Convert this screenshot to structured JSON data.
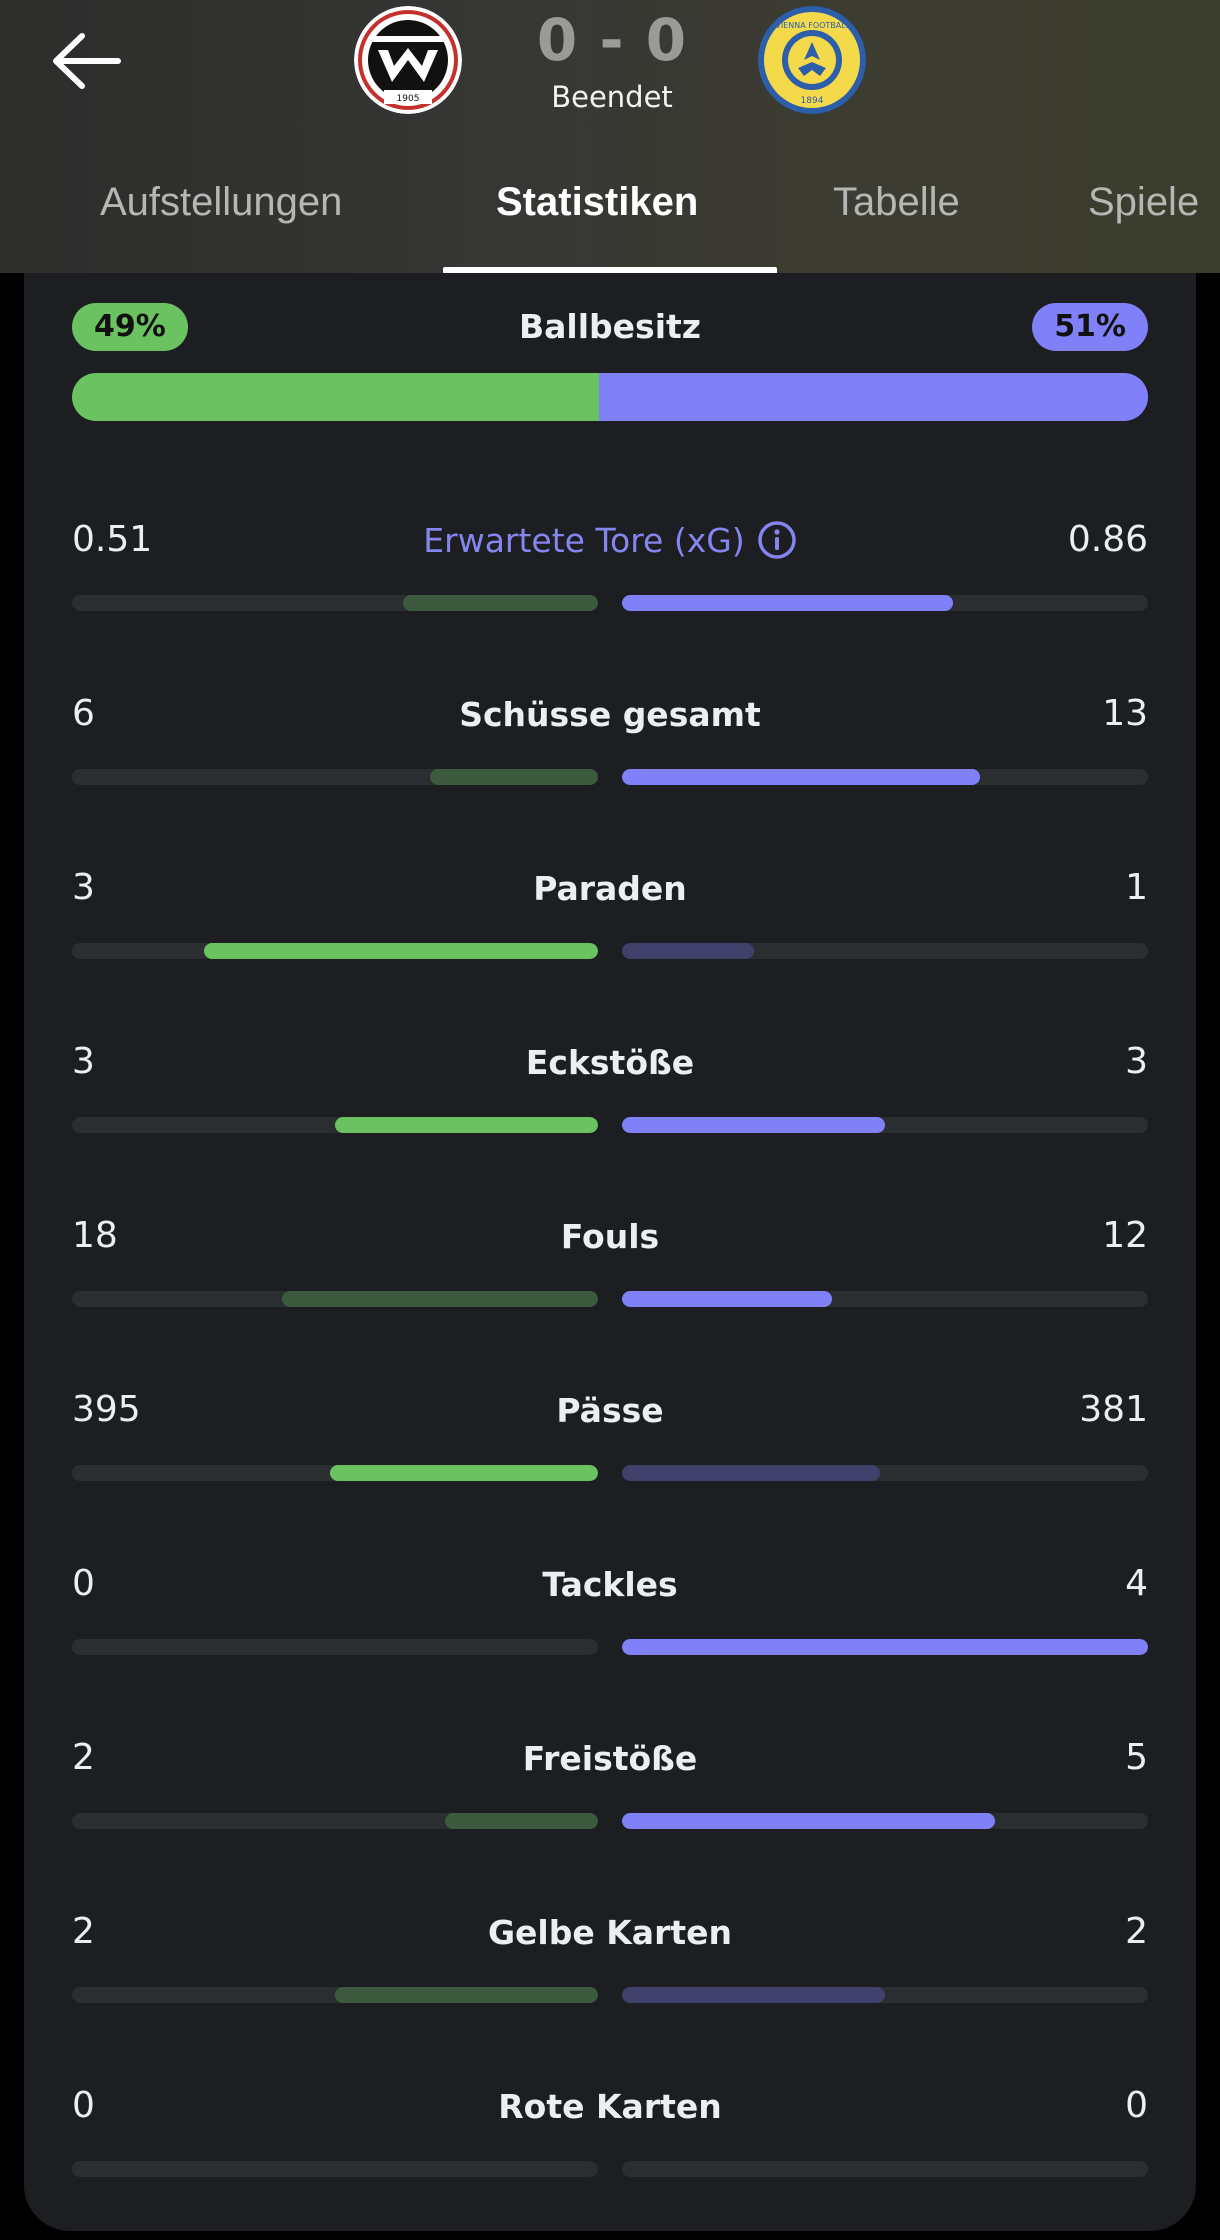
{
  "header": {
    "score": "0 - 0",
    "status": "Beendet",
    "home_logo_year": "1905",
    "away_logo_text": "FIRST VIENNA FOOTBALL CLUB",
    "away_logo_year": "1894"
  },
  "tabs": [
    {
      "label": "Aufstellungen",
      "active": false
    },
    {
      "label": "Statistiken",
      "active": true
    },
    {
      "label": "Tabelle",
      "active": false
    },
    {
      "label": "Spiele",
      "active": false
    }
  ],
  "icons": {
    "back": "arrow-left-icon",
    "info": "info-icon"
  },
  "colors": {
    "home": "#6bc261",
    "home_dim": "#3c5a3e",
    "away": "#8080f8",
    "away_dim": "#3f416b"
  },
  "possession": {
    "label": "Ballbesitz",
    "home": "49%",
    "away": "51%",
    "home_fraction": 0.49,
    "away_fraction": 0.51
  },
  "stats": [
    {
      "label": "Erwartete Tore (xG)",
      "home": "0.51",
      "away": "0.86",
      "home_fill": 0.37,
      "away_fill": 0.63,
      "home_bright": false,
      "away_bright": true,
      "accent": true
    },
    {
      "label": "Schüsse gesamt",
      "home": "6",
      "away": "13",
      "home_fill": 0.32,
      "away_fill": 0.68,
      "home_bright": false,
      "away_bright": true,
      "accent": false
    },
    {
      "label": "Paraden",
      "home": "3",
      "away": "1",
      "home_fill": 0.75,
      "away_fill": 0.25,
      "home_bright": true,
      "away_bright": false,
      "accent": false
    },
    {
      "label": "Eckstöße",
      "home": "3",
      "away": "3",
      "home_fill": 0.5,
      "away_fill": 0.5,
      "home_bright": true,
      "away_bright": true,
      "accent": false
    },
    {
      "label": "Fouls",
      "home": "18",
      "away": "12",
      "home_fill": 0.6,
      "away_fill": 0.4,
      "home_bright": false,
      "away_bright": true,
      "accent": false
    },
    {
      "label": "Pässe",
      "home": "395",
      "away": "381",
      "home_fill": 0.51,
      "away_fill": 0.49,
      "home_bright": true,
      "away_bright": false,
      "accent": false
    },
    {
      "label": "Tackles",
      "home": "0",
      "away": "4",
      "home_fill": 0.0,
      "away_fill": 1.0,
      "home_bright": false,
      "away_bright": true,
      "accent": false
    },
    {
      "label": "Freistöße",
      "home": "2",
      "away": "5",
      "home_fill": 0.29,
      "away_fill": 0.71,
      "home_bright": false,
      "away_bright": true,
      "accent": false
    },
    {
      "label": "Gelbe Karten",
      "home": "2",
      "away": "2",
      "home_fill": 0.5,
      "away_fill": 0.5,
      "home_bright": false,
      "away_bright": false,
      "accent": false
    },
    {
      "label": "Rote Karten",
      "home": "0",
      "away": "0",
      "home_fill": 0.0,
      "away_fill": 0.0,
      "home_bright": false,
      "away_bright": false,
      "accent": false
    }
  ]
}
